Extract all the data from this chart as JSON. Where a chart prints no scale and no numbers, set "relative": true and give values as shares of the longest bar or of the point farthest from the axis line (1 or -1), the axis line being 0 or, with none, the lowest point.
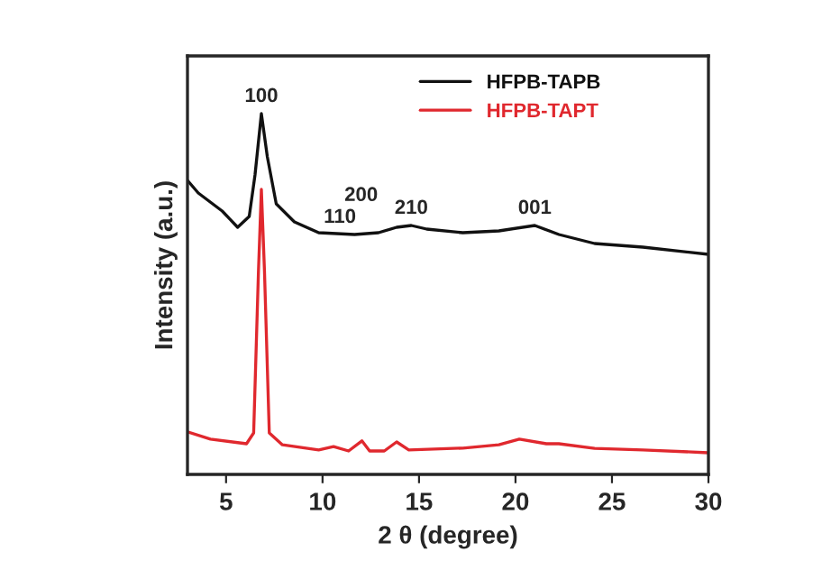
{
  "chart_data": {
    "type": "line",
    "relative": true,
    "xlabel": "2 θ (degree)",
    "ylabel": "Intensity (a.u.)",
    "xlim": [
      3,
      30
    ],
    "xticks": [
      5,
      10,
      15,
      20,
      25,
      30
    ],
    "legend": "top",
    "grid": false,
    "series": [
      {
        "name": "HFPB-TAPB",
        "color": "#111111",
        "x": [
          3,
          3.56,
          4.8,
          5.6,
          6.2,
          6.5,
          6.83,
          7.14,
          7.6,
          8.54,
          9.8,
          11.66,
          12.9,
          13.84,
          14.6,
          15.4,
          17.27,
          19.14,
          21.0,
          22.25,
          24.1,
          26.6,
          30
        ],
        "values": [
          0.815,
          0.78,
          0.73,
          0.685,
          0.715,
          0.83,
          1.0,
          0.88,
          0.75,
          0.7,
          0.67,
          0.665,
          0.67,
          0.685,
          0.69,
          0.68,
          0.67,
          0.675,
          0.69,
          0.665,
          0.64,
          0.63,
          0.61
        ]
      },
      {
        "name": "HFPB-TAPT",
        "color": "#e0282e",
        "x": [
          3,
          4.19,
          6.06,
          6.43,
          6.68,
          6.83,
          6.99,
          7.24,
          7.92,
          9.8,
          10.57,
          11.35,
          12.04,
          12.44,
          13.2,
          13.84,
          14.47,
          17.27,
          19.14,
          20.2,
          21.6,
          22.25,
          24.1,
          26.6,
          30
        ],
        "values": [
          0.118,
          0.098,
          0.085,
          0.115,
          0.565,
          0.79,
          0.565,
          0.115,
          0.082,
          0.068,
          0.077,
          0.065,
          0.093,
          0.065,
          0.065,
          0.09,
          0.068,
          0.073,
          0.082,
          0.098,
          0.085,
          0.085,
          0.072,
          0.068,
          0.06
        ]
      }
    ],
    "annotations": [
      {
        "text": "100",
        "x": 6.83,
        "y": 1.0
      },
      {
        "text": "110",
        "x": 10.9,
        "y": 0.665
      },
      {
        "text": "200",
        "x": 12.0,
        "y": 0.67
      },
      {
        "text": "210",
        "x": 14.6,
        "y": 0.69
      },
      {
        "text": "001",
        "x": 21.0,
        "y": 0.69
      }
    ]
  }
}
